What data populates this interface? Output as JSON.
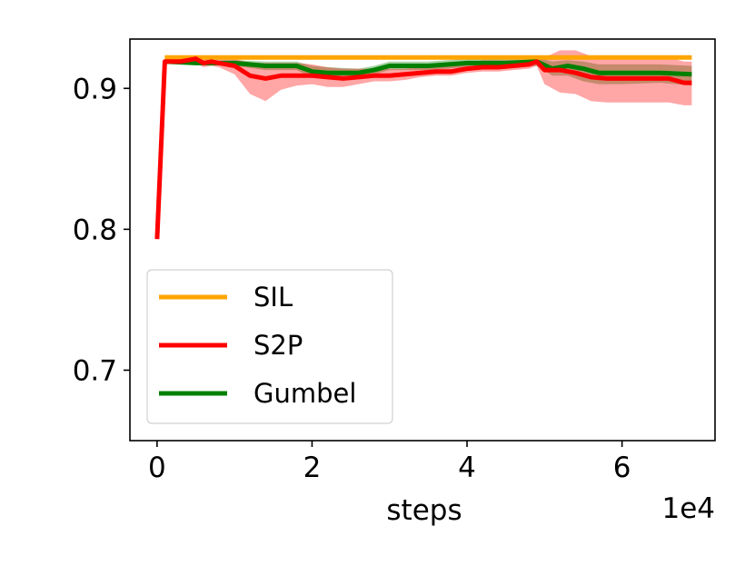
{
  "chart_data": {
    "type": "line",
    "title": "",
    "xlabel": "steps",
    "ylabel": "",
    "x_offset_label": "1e4",
    "xlim": [
      -0.35,
      7.2
    ],
    "ylim": [
      0.65,
      0.935
    ],
    "x_ticks": [
      0,
      2,
      4,
      6
    ],
    "x_tick_labels": [
      "0",
      "2",
      "4",
      "6"
    ],
    "y_ticks": [
      0.7,
      0.8,
      0.9
    ],
    "y_tick_labels": [
      "0.7",
      "0.8",
      "0.9"
    ],
    "grid": false,
    "legend_position": "lower-left",
    "series": [
      {
        "name": "SIL",
        "color": "#FFA500",
        "x": [
          0.1,
          6.9
        ],
        "y": [
          0.922,
          0.922
        ],
        "lower": [
          0.921,
          0.921
        ],
        "upper": [
          0.923,
          0.923
        ]
      },
      {
        "name": "S2P",
        "color": "#FF0000",
        "x": [
          0,
          0.1,
          0.3,
          0.5,
          0.6,
          0.7,
          0.8,
          1.0,
          1.2,
          1.4,
          1.6,
          1.8,
          2.0,
          2.2,
          2.4,
          2.6,
          2.8,
          3.0,
          3.2,
          3.4,
          3.6,
          3.8,
          4.0,
          4.2,
          4.4,
          4.6,
          4.8,
          4.9,
          5.0,
          5.2,
          5.4,
          5.6,
          5.8,
          6.0,
          6.2,
          6.4,
          6.6,
          6.8,
          6.9
        ],
        "y": [
          0.793,
          0.919,
          0.919,
          0.921,
          0.918,
          0.919,
          0.918,
          0.916,
          0.909,
          0.907,
          0.909,
          0.909,
          0.909,
          0.908,
          0.907,
          0.908,
          0.909,
          0.909,
          0.91,
          0.911,
          0.912,
          0.912,
          0.914,
          0.915,
          0.915,
          0.916,
          0.917,
          0.919,
          0.913,
          0.913,
          0.911,
          0.908,
          0.907,
          0.907,
          0.907,
          0.907,
          0.907,
          0.904,
          0.904
        ],
        "lower": [
          0.793,
          0.918,
          0.917,
          0.918,
          0.915,
          0.916,
          0.915,
          0.91,
          0.896,
          0.891,
          0.899,
          0.902,
          0.903,
          0.901,
          0.901,
          0.903,
          0.905,
          0.905,
          0.906,
          0.908,
          0.909,
          0.909,
          0.911,
          0.912,
          0.912,
          0.913,
          0.914,
          0.916,
          0.903,
          0.897,
          0.896,
          0.891,
          0.89,
          0.89,
          0.89,
          0.89,
          0.89,
          0.888,
          0.888
        ],
        "upper": [
          0.793,
          0.92,
          0.921,
          0.923,
          0.921,
          0.922,
          0.921,
          0.921,
          0.918,
          0.918,
          0.918,
          0.918,
          0.917,
          0.915,
          0.914,
          0.914,
          0.914,
          0.914,
          0.914,
          0.915,
          0.916,
          0.917,
          0.918,
          0.92,
          0.92,
          0.92,
          0.92,
          0.922,
          0.922,
          0.927,
          0.927,
          0.923,
          0.922,
          0.922,
          0.922,
          0.922,
          0.922,
          0.919,
          0.919
        ]
      },
      {
        "name": "Gumbel",
        "color": "#008000",
        "x": [
          0.1,
          0.5,
          1.0,
          1.4,
          1.8,
          2.0,
          2.2,
          2.6,
          2.8,
          3.0,
          3.5,
          4.0,
          4.5,
          4.9,
          5.1,
          5.3,
          5.5,
          5.7,
          6.0,
          6.5,
          6.9
        ],
        "y": [
          0.919,
          0.918,
          0.918,
          0.916,
          0.916,
          0.912,
          0.911,
          0.911,
          0.913,
          0.916,
          0.916,
          0.918,
          0.918,
          0.919,
          0.914,
          0.916,
          0.914,
          0.911,
          0.911,
          0.911,
          0.91
        ],
        "lower": [
          0.918,
          0.917,
          0.916,
          0.913,
          0.913,
          0.908,
          0.907,
          0.908,
          0.91,
          0.913,
          0.913,
          0.915,
          0.915,
          0.916,
          0.909,
          0.909,
          0.905,
          0.903,
          0.903,
          0.904,
          0.902
        ],
        "upper": [
          0.92,
          0.919,
          0.92,
          0.919,
          0.919,
          0.916,
          0.915,
          0.914,
          0.916,
          0.919,
          0.919,
          0.921,
          0.921,
          0.922,
          0.919,
          0.92,
          0.919,
          0.917,
          0.917,
          0.917,
          0.916
        ]
      }
    ]
  }
}
